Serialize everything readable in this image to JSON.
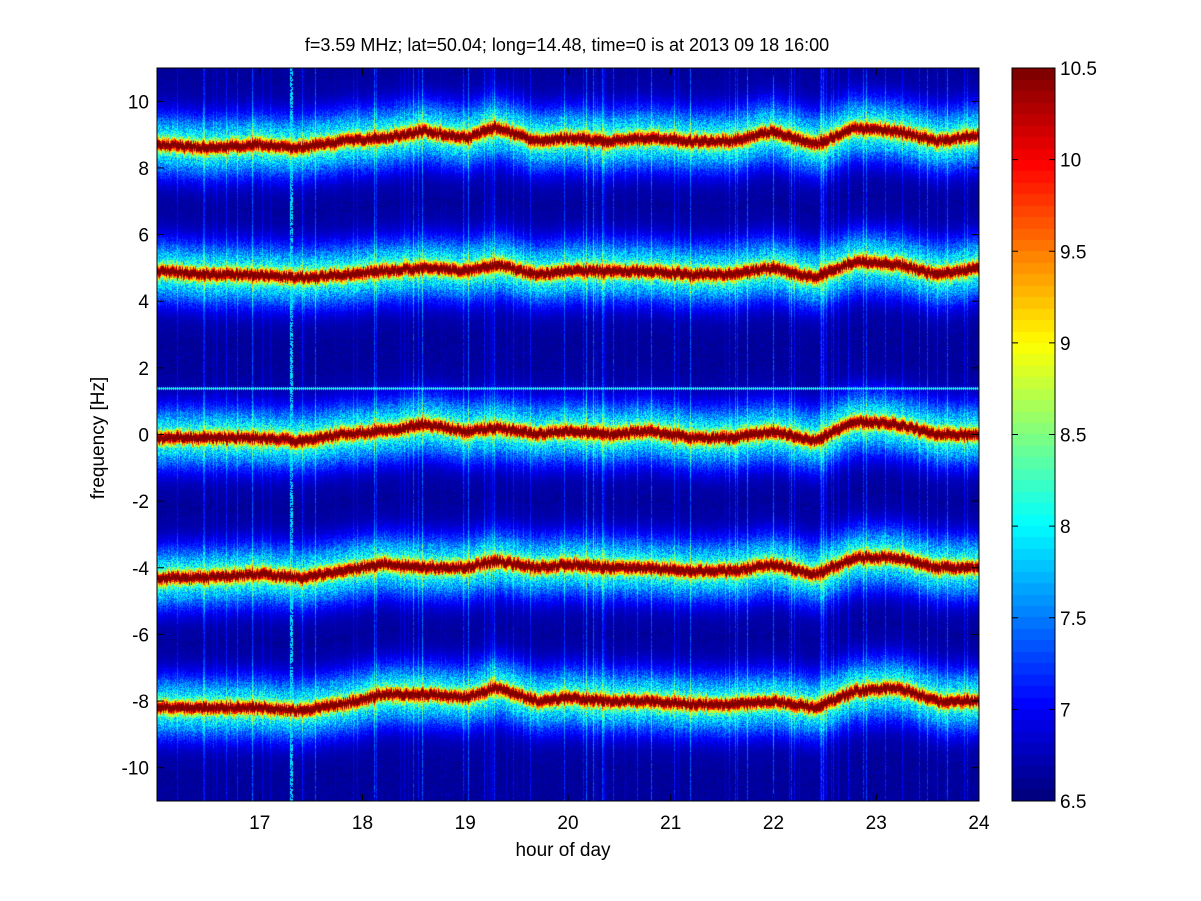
{
  "chart_data": {
    "type": "heatmap",
    "title": "f=3.59 MHz;  lat=50.04; long=14.48, time=0 is at 2013 09 18 16:00",
    "xlabel": "hour of day",
    "ylabel": "frequency [Hz]",
    "xlim": [
      16.0,
      24.0
    ],
    "ylim": [
      -11,
      11
    ],
    "x_ticks": [
      17,
      18,
      19,
      20,
      21,
      22,
      23,
      24
    ],
    "y_ticks": [
      10,
      8,
      6,
      4,
      2,
      0,
      -2,
      -4,
      -6,
      -8,
      -10
    ],
    "colorbar": {
      "colormap": "jet",
      "range": [
        6.5,
        10.5
      ],
      "ticks": [
        10.5,
        10,
        9.5,
        9,
        8.5,
        8,
        7.5,
        7,
        6.5
      ]
    },
    "background_level": 6.6,
    "bands": [
      {
        "center_x": [
          16.0,
          16.5,
          17.0,
          17.4,
          17.8,
          18.2,
          18.6,
          19.0,
          19.3,
          19.7,
          20.0,
          20.4,
          20.8,
          21.2,
          21.6,
          22.0,
          22.4,
          22.8,
          23.2,
          23.6,
          24.0
        ],
        "center_y": [
          8.7,
          8.6,
          8.7,
          8.6,
          8.8,
          8.9,
          9.1,
          8.9,
          9.2,
          8.8,
          8.9,
          8.8,
          8.9,
          8.8,
          8.8,
          9.1,
          8.7,
          9.2,
          9.1,
          8.8,
          9.0
        ]
      },
      {
        "center_x": [
          16.0,
          16.5,
          17.0,
          17.4,
          17.8,
          18.2,
          18.6,
          19.0,
          19.3,
          19.7,
          20.0,
          20.4,
          20.8,
          21.2,
          21.6,
          22.0,
          22.4,
          22.8,
          23.2,
          23.6,
          24.0
        ],
        "center_y": [
          4.9,
          4.8,
          4.8,
          4.7,
          4.8,
          4.9,
          5.0,
          4.9,
          5.1,
          4.8,
          4.9,
          4.9,
          4.9,
          4.8,
          4.8,
          5.0,
          4.7,
          5.2,
          5.1,
          4.8,
          5.0
        ]
      },
      {
        "center_x": [
          16.0,
          16.5,
          17.0,
          17.4,
          17.8,
          18.2,
          18.6,
          19.0,
          19.3,
          19.7,
          20.0,
          20.4,
          20.8,
          21.2,
          21.6,
          22.0,
          22.4,
          22.8,
          23.2,
          23.6,
          24.0
        ],
        "center_y": [
          -0.1,
          -0.1,
          -0.1,
          -0.2,
          0.0,
          0.1,
          0.3,
          0.1,
          0.2,
          0.0,
          0.1,
          0.0,
          0.1,
          -0.1,
          -0.1,
          0.1,
          -0.2,
          0.4,
          0.3,
          0.0,
          0.0
        ]
      },
      {
        "center_x": [
          16.0,
          16.5,
          17.0,
          17.4,
          17.8,
          18.2,
          18.6,
          19.0,
          19.3,
          19.7,
          20.0,
          20.4,
          20.8,
          21.2,
          21.6,
          22.0,
          22.4,
          22.8,
          23.2,
          23.6,
          24.0
        ],
        "center_y": [
          -4.3,
          -4.3,
          -4.2,
          -4.3,
          -4.1,
          -3.9,
          -4.0,
          -4.0,
          -3.8,
          -4.0,
          -3.9,
          -4.0,
          -4.0,
          -4.1,
          -4.1,
          -3.9,
          -4.2,
          -3.7,
          -3.7,
          -4.0,
          -4.0
        ]
      },
      {
        "center_x": [
          16.0,
          16.5,
          17.0,
          17.4,
          17.8,
          18.2,
          18.6,
          19.0,
          19.3,
          19.7,
          20.0,
          20.4,
          20.8,
          21.2,
          21.6,
          22.0,
          22.4,
          22.8,
          23.2,
          23.6,
          24.0
        ],
        "center_y": [
          -8.2,
          -8.2,
          -8.2,
          -8.3,
          -8.1,
          -7.8,
          -7.8,
          -7.9,
          -7.6,
          -8.0,
          -7.9,
          -8.0,
          -8.0,
          -8.1,
          -8.1,
          -8.0,
          -8.2,
          -7.7,
          -7.6,
          -8.0,
          -8.0
        ]
      }
    ],
    "band_peak_level": 10.5,
    "band_halfwidth_hz": 0.35,
    "band_spread_hz": 1.3,
    "static_lines_y": [
      4.92,
      1.4
    ],
    "vertical_streak_x": [
      17.3
    ]
  }
}
